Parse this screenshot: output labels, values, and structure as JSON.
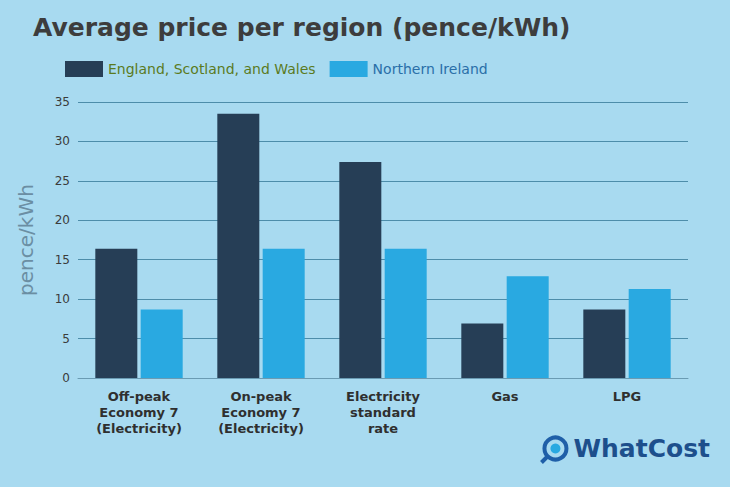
{
  "chart_data": {
    "type": "bar",
    "title": "Average price per region (pence/kWh)",
    "y_label": "pence/kWh",
    "categories": [
      "Off-peak\nEconomy 7\n(Electricity)",
      "On-peak\nEconomy 7\n(Electricity)",
      "Electricity\nstandard\nrate",
      "Gas",
      "LPG"
    ],
    "series": [
      {
        "name": "England, Scotland, and Wales",
        "color": "#263e56",
        "values": [
          16.4,
          33.5,
          27.4,
          6.9,
          8.7
        ]
      },
      {
        "name": "Northern Ireland",
        "color": "#29a9e1",
        "values": [
          8.7,
          16.4,
          16.4,
          12.9,
          11.3
        ]
      }
    ],
    "ylim": [
      0,
      35
    ],
    "yticks": [
      0,
      5,
      10,
      15,
      20,
      25,
      30,
      35
    ],
    "grid": true,
    "legend": "top-left",
    "annotations": [
      "WhatCost"
    ]
  }
}
